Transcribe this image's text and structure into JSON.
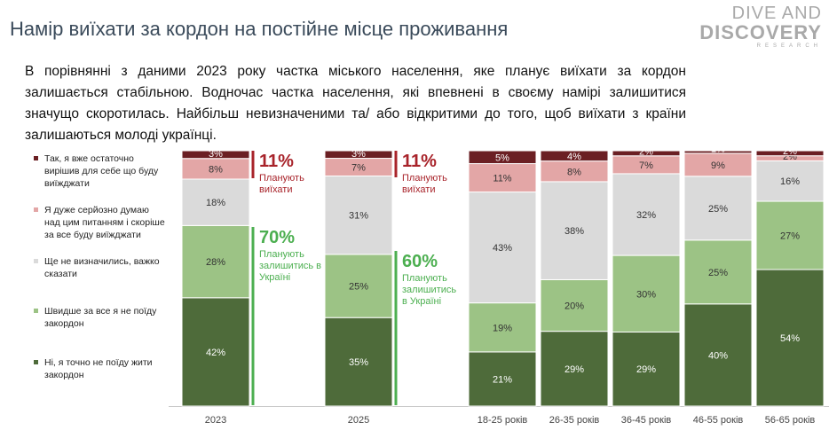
{
  "title": "Намір виїхати за кордон на постійне місце проживання",
  "logo": {
    "line1": "DIVE AND",
    "line2": "DISCOVERY",
    "line3": "RESEARCH"
  },
  "summary": "В порівнянні з даними 2023 року частка міського населення, яке планує виїхати за кордон залишається стабільною. Водночас частка населення, які впевнені в своєму намірі залишитися значущо скоротилась. Найбільш невизначеними та/ або відкритими до того, щоб виїхати з країни залишаються молоді українці.",
  "legend": [
    {
      "label": "Так, я вже остаточно вирішив для себе що буду виїжджати",
      "color": "#6b1f23"
    },
    {
      "label": "Я дуже серйозно думаю над цим питанням і скоріше за все буду виїжджати",
      "color": "#e3a6a6"
    },
    {
      "label": "Ще не визначились, важко сказати",
      "color": "#dadada"
    },
    {
      "label": "Швидше за все я не поїду закордон",
      "color": "#9cc385"
    },
    {
      "label": "Ні, я точно не поїду жити закордон",
      "color": "#4e6b3a"
    }
  ],
  "annotations": {
    "leave_2023": {
      "value": "11%",
      "text": "Планують виїхати"
    },
    "leave_2025": {
      "value": "11%",
      "text": "Планують виїхати"
    },
    "stay_2023": {
      "value": "70%",
      "text": "Планують залишитись в Україні"
    },
    "stay_2025": {
      "value": "60%",
      "text": "Планують залишитись в Україні"
    },
    "leave_color": "#a8232a",
    "stay_color": "#4caf50"
  },
  "chart_data": {
    "type": "bar",
    "stacked": true,
    "categories": [
      "2023",
      "2025",
      "18-25 років",
      "26-35 років",
      "36-45 років",
      "46-55 років",
      "56-65 років"
    ],
    "series": [
      {
        "name": "Ні, я точно не поїду жити закордон",
        "color": "#4e6b3a",
        "label_color": "#ffffff",
        "values": [
          42,
          35,
          21,
          29,
          29,
          40,
          54
        ]
      },
      {
        "name": "Швидше за все я не поїду закордон",
        "color": "#9cc385",
        "label_color": "#333333",
        "values": [
          28,
          25,
          19,
          20,
          30,
          25,
          27
        ]
      },
      {
        "name": "Ще не визначились, важко сказати",
        "color": "#dadada",
        "label_color": "#333333",
        "values": [
          18,
          31,
          43,
          38,
          32,
          25,
          16
        ]
      },
      {
        "name": "Я дуже серйозно думаю над цим питанням і скоріше за все буду виїжджати",
        "color": "#e3a6a6",
        "label_color": "#333333",
        "values": [
          8,
          7,
          11,
          8,
          7,
          9,
          2
        ]
      },
      {
        "name": "Так, я вже остаточно вирішив для себе що буду виїжджати",
        "color": "#6b1f23",
        "label_color": "#ffffff",
        "values": [
          3,
          3,
          5,
          4,
          2,
          1,
          2
        ]
      }
    ],
    "ylim": [
      0,
      100
    ],
    "grid": false,
    "legend_position": "left"
  }
}
